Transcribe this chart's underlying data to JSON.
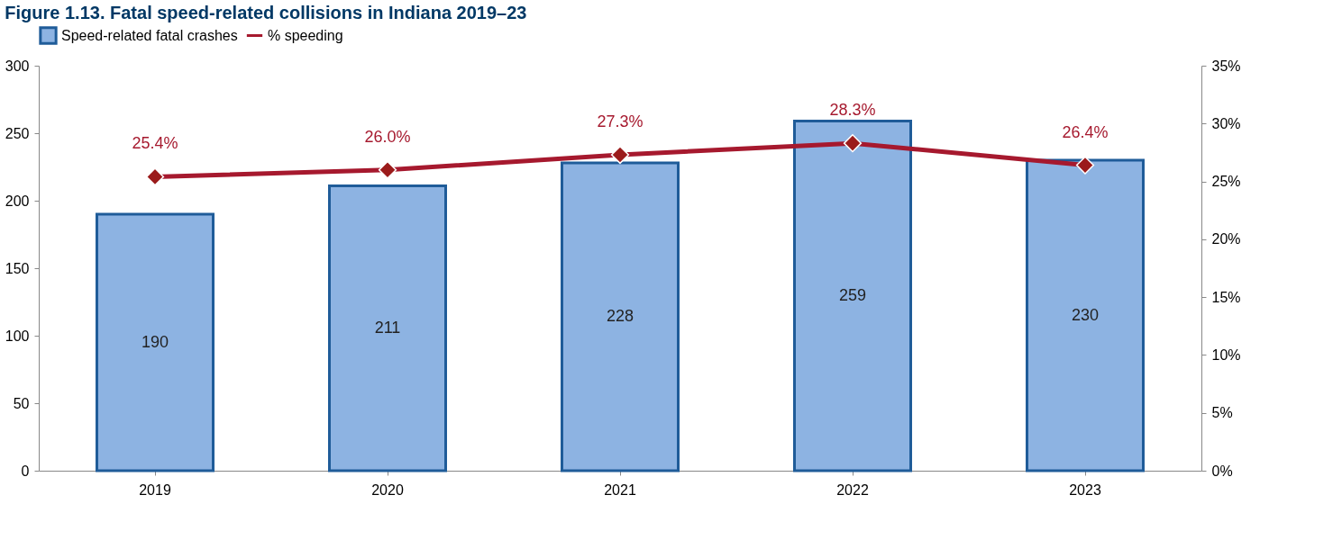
{
  "chart_data": {
    "type": "bar",
    "title": "Figure 1.13. Fatal speed-related collisions in Indiana 2019–23",
    "categories": [
      "2019",
      "2020",
      "2021",
      "2022",
      "2023"
    ],
    "series": [
      {
        "name": "Speed-related fatal crashes",
        "color": "#8db3e2",
        "values": [
          190,
          211,
          228,
          259,
          230
        ]
      },
      {
        "name": "% speeding",
        "type": "line",
        "color": "#a6192e",
        "axis": "y2",
        "marker": "diamond",
        "values": [
          25.4,
          26.0,
          27.3,
          28.3,
          26.4
        ],
        "value_labels": [
          "25.4%",
          "26.0%",
          "27.3%",
          "28.3%",
          "26.4%"
        ]
      }
    ],
    "ylim": [
      0,
      300
    ],
    "yticks": [
      0,
      50,
      100,
      150,
      200,
      250,
      300
    ],
    "y2lim": [
      0,
      35
    ],
    "y2ticks": [
      {
        "value": 0,
        "label": "0%"
      },
      {
        "value": 5,
        "label": "5%"
      },
      {
        "value": 10,
        "label": "10%"
      },
      {
        "value": 15,
        "label": "15%"
      },
      {
        "value": 20,
        "label": "20%"
      },
      {
        "value": 25,
        "label": "25%"
      },
      {
        "value": 30,
        "label": "30%"
      },
      {
        "value": 35,
        "label": "35%"
      }
    ],
    "data_labels": true,
    "legend": "top",
    "grid": false
  }
}
